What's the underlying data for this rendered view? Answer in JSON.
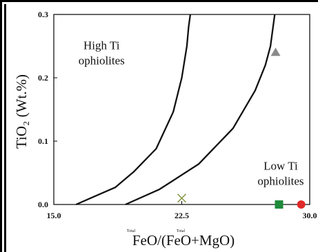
{
  "chart_data": {
    "type": "scatter",
    "title": "",
    "xlabel": "FeO/(FeO+MgO)",
    "xlabel_superscripts": [
      "Total",
      "Total"
    ],
    "ylabel": "TiO₂ (Wt.%)",
    "xlim": [
      15.0,
      30.0
    ],
    "ylim": [
      0.0,
      0.3
    ],
    "x_ticks": [
      15.0,
      22.5,
      30.0
    ],
    "x_tick_labels": [
      "15.0",
      "22.5",
      "30.0"
    ],
    "y_ticks": [
      0.0,
      0.1,
      0.2,
      0.3
    ],
    "y_tick_labels": [
      "0.0",
      "0.1",
      "0.2",
      "0.3"
    ],
    "grid": false,
    "regions": [
      {
        "label_lines": [
          "High Ti",
          "ophiolites"
        ],
        "x": 17.8,
        "y": 0.245
      },
      {
        "label_lines": [
          "Low Ti",
          "ophiolites"
        ],
        "x": 28.3,
        "y": 0.055
      }
    ],
    "boundary_lines": [
      {
        "x": [
          16.3,
          18.6,
          19.7,
          21.0,
          22.0,
          22.5,
          22.8,
          22.9,
          23.0
        ],
        "y": [
          0.0,
          0.027,
          0.052,
          0.088,
          0.146,
          0.2,
          0.25,
          0.28,
          0.3
        ]
      },
      {
        "x": [
          19.2,
          21.2,
          23.5,
          25.5,
          26.8,
          27.4,
          27.7,
          27.85,
          27.95
        ],
        "y": [
          0.0,
          0.024,
          0.064,
          0.12,
          0.18,
          0.22,
          0.25,
          0.28,
          0.3
        ]
      }
    ],
    "points": [
      {
        "x": 22.5,
        "y": 0.01,
        "marker": "cross",
        "color": "#8a9a4a"
      },
      {
        "x": 28.0,
        "y": 0.24,
        "marker": "triangle",
        "color": "#8a8a8a"
      },
      {
        "x": 28.2,
        "y": 0.0,
        "marker": "square",
        "color": "#1e8a3a"
      },
      {
        "x": 29.5,
        "y": 0.0,
        "marker": "circle",
        "color": "#e02a2a"
      }
    ]
  }
}
